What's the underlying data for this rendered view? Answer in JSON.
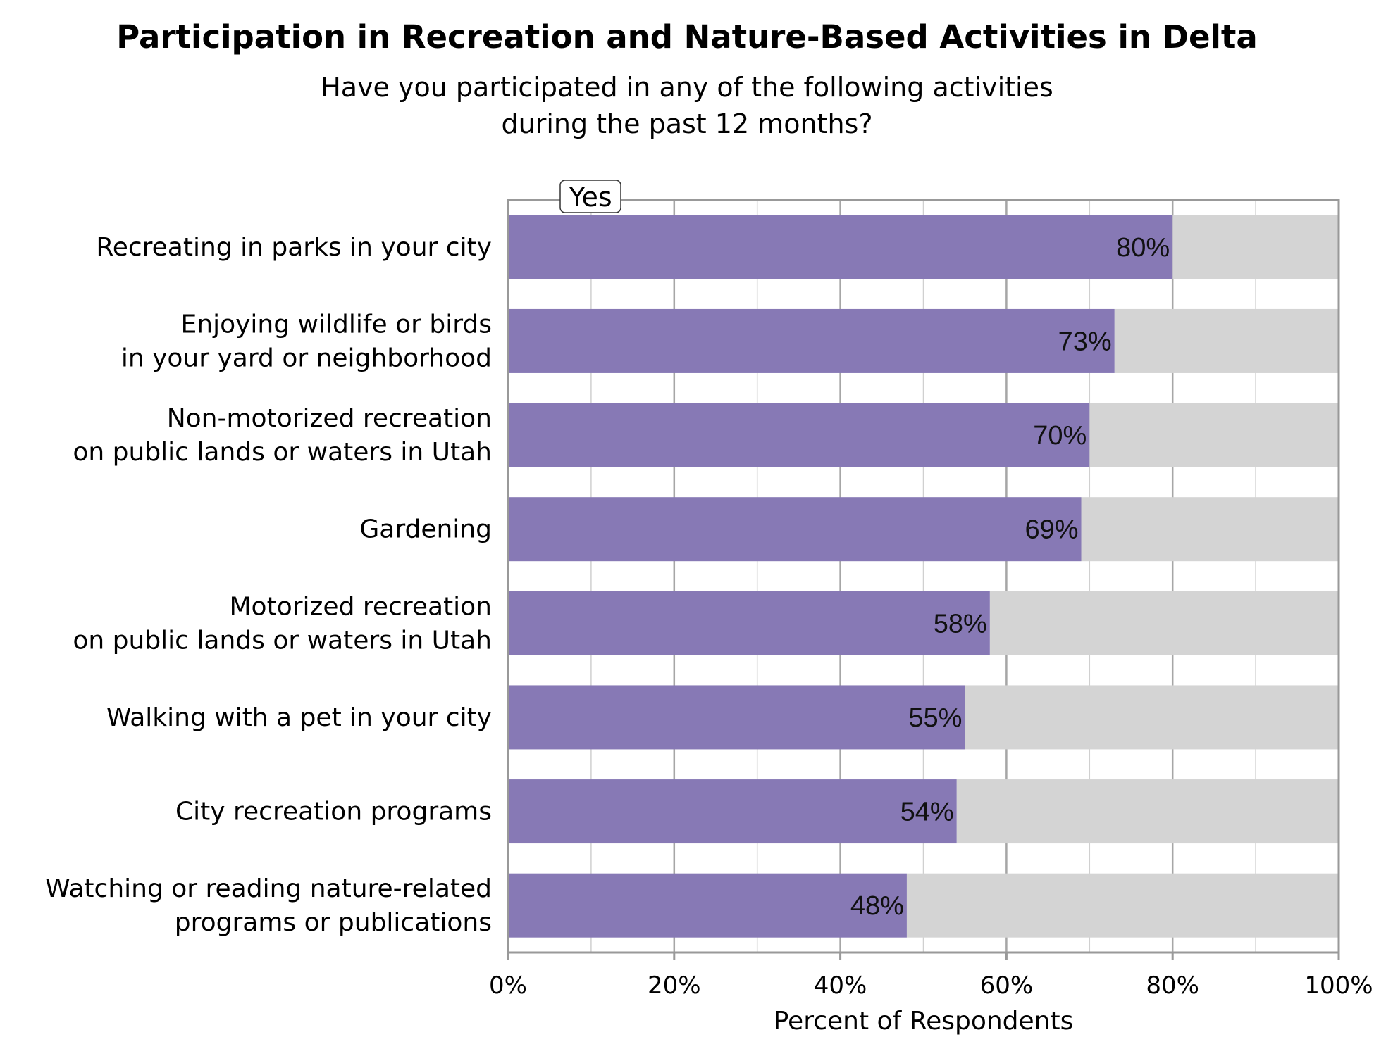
{
  "chart_data": {
    "type": "bar",
    "orientation": "horizontal",
    "stacked": true,
    "title": "Participation in Recreation and Nature-Based Activities in Delta",
    "subtitle": [
      "Have you participated in any of the following activities",
      "during the past 12 months?"
    ],
    "xlabel": "Percent of Respondents",
    "xlim": [
      0,
      100
    ],
    "x_ticks": [
      "0%",
      "20%",
      "40%",
      "60%",
      "80%",
      "100%"
    ],
    "legend": {
      "entries": [
        "Yes"
      ],
      "placement": "top-left"
    },
    "grid": true,
    "colors": {
      "yes": "#8779b5",
      "remainder": "#d4d4d4",
      "axis": "#999999",
      "grid": "#c8c8c8"
    },
    "categories": [
      [
        "Recreating in parks in your city"
      ],
      [
        "Enjoying wildlife or birds",
        "in your yard or neighborhood"
      ],
      [
        "Non-motorized recreation",
        "on public lands or waters in Utah"
      ],
      [
        "Gardening"
      ],
      [
        "Motorized recreation",
        "on public lands or waters in Utah"
      ],
      [
        "Walking with a pet in your city"
      ],
      [
        "City recreation programs"
      ],
      [
        "Watching or reading nature-related",
        "programs or publications"
      ]
    ],
    "series": [
      {
        "name": "Yes",
        "values": [
          80,
          73,
          70,
          69,
          58,
          55,
          54,
          48
        ],
        "labels": [
          "80%",
          "73%",
          "70%",
          "69%",
          "58%",
          "55%",
          "54%",
          "48%"
        ]
      }
    ]
  }
}
